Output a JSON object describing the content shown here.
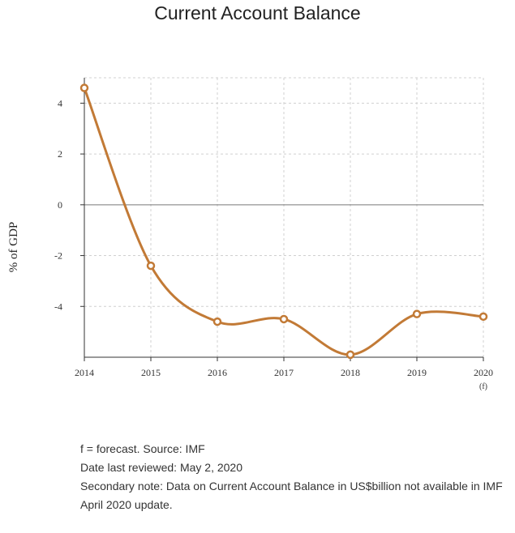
{
  "chart_data": {
    "type": "line",
    "title": "Current Account Balance",
    "ylabel": "% of GDP",
    "xlabel": "",
    "categories": [
      "2014",
      "2015",
      "2016",
      "2017",
      "2018",
      "2019",
      "2020"
    ],
    "forecast_marker": "(f)",
    "series": [
      {
        "values": [
          4.6,
          -2.4,
          -4.6,
          -4.5,
          -5.9,
          -4.3,
          -4.4
        ]
      }
    ],
    "yticks": [
      4,
      2,
      0,
      -2,
      -4
    ],
    "ylim": [
      -6,
      5
    ],
    "grid": true,
    "color": "#c27a36"
  },
  "notes": [
    "f = forecast. Source: IMF",
    "Date last reviewed: May 2, 2020",
    "Secondary note: Data on Current Account Balance in US$billion not available in IMF April 2020 update."
  ]
}
